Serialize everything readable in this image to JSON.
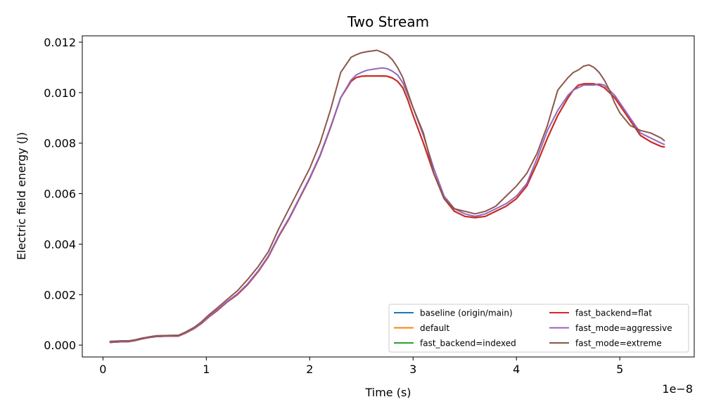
{
  "chart_data": {
    "type": "line",
    "title": "Two Stream",
    "xlabel": "Time (s)",
    "ylabel": "Electric field energy (J)",
    "x_offset_label": "1e−8",
    "x_scale": 1e-08,
    "xlim": [
      -0.2,
      5.72
    ],
    "ylim": [
      -0.00047,
      0.01225
    ],
    "xticks": [
      0,
      1,
      2,
      3,
      4,
      5
    ],
    "xtick_labels": [
      "0",
      "1",
      "2",
      "3",
      "4",
      "5"
    ],
    "yticks": [
      0.0,
      0.002,
      0.004,
      0.006,
      0.008,
      0.01,
      0.012
    ],
    "ytick_labels": [
      "0.000",
      "0.002",
      "0.004",
      "0.006",
      "0.008",
      "0.010",
      "0.012"
    ],
    "grid": false,
    "legend_position": "lower-right",
    "x": [
      0.07,
      0.13,
      0.18,
      0.25,
      0.31,
      0.38,
      0.45,
      0.52,
      0.6,
      0.68,
      0.73,
      0.8,
      0.88,
      0.95,
      1.02,
      1.1,
      1.2,
      1.3,
      1.4,
      1.5,
      1.6,
      1.7,
      1.8,
      1.9,
      2.0,
      2.1,
      2.2,
      2.3,
      2.4,
      2.45,
      2.5,
      2.55,
      2.6,
      2.65,
      2.7,
      2.75,
      2.8,
      2.85,
      2.9,
      2.95,
      3.0,
      3.1,
      3.2,
      3.3,
      3.4,
      3.5,
      3.6,
      3.7,
      3.8,
      3.9,
      4.0,
      4.1,
      4.2,
      4.3,
      4.4,
      4.5,
      4.55,
      4.6,
      4.65,
      4.7,
      4.75,
      4.8,
      4.85,
      4.9,
      4.95,
      5.0,
      5.1,
      5.2,
      5.3,
      5.4,
      5.43
    ],
    "series": [
      {
        "name": "baseline (origin/main)",
        "color": "#1f77b4",
        "values": [
          0.00011,
          0.00012,
          0.00013,
          0.00014,
          0.00018,
          0.00025,
          0.0003,
          0.00034,
          0.00035,
          0.00036,
          0.00036,
          0.00048,
          0.00065,
          0.00085,
          0.0011,
          0.00135,
          0.0017,
          0.002,
          0.0024,
          0.0029,
          0.0035,
          0.0043,
          0.005,
          0.0058,
          0.0066,
          0.0075,
          0.0086,
          0.0098,
          0.01045,
          0.0106,
          0.01065,
          0.01066,
          0.01066,
          0.01066,
          0.01066,
          0.01065,
          0.01058,
          0.01045,
          0.0102,
          0.0097,
          0.0091,
          0.008,
          0.0068,
          0.0058,
          0.0053,
          0.0051,
          0.00505,
          0.0051,
          0.0053,
          0.0055,
          0.0058,
          0.0063,
          0.0072,
          0.0082,
          0.0091,
          0.0098,
          0.0101,
          0.0103,
          0.01035,
          0.01035,
          0.01035,
          0.0103,
          0.0102,
          0.01,
          0.0098,
          0.0095,
          0.0089,
          0.0083,
          0.00805,
          0.00787,
          0.00785
        ]
      },
      {
        "name": "default",
        "color": "#ff7f0e",
        "values": [
          0.00011,
          0.00012,
          0.00013,
          0.00014,
          0.00018,
          0.00025,
          0.0003,
          0.00034,
          0.00035,
          0.00036,
          0.00036,
          0.00048,
          0.00065,
          0.00085,
          0.0011,
          0.00135,
          0.0017,
          0.002,
          0.0024,
          0.0029,
          0.0035,
          0.0043,
          0.005,
          0.0058,
          0.0066,
          0.0075,
          0.0086,
          0.0098,
          0.01045,
          0.0106,
          0.01065,
          0.01066,
          0.01066,
          0.01066,
          0.01066,
          0.01065,
          0.01058,
          0.01045,
          0.0102,
          0.0097,
          0.0091,
          0.008,
          0.0068,
          0.0058,
          0.0053,
          0.0051,
          0.00505,
          0.0051,
          0.0053,
          0.0055,
          0.0058,
          0.0063,
          0.0072,
          0.0082,
          0.0091,
          0.0098,
          0.0101,
          0.0103,
          0.01035,
          0.01035,
          0.01035,
          0.0103,
          0.0102,
          0.01,
          0.0098,
          0.0095,
          0.0089,
          0.0083,
          0.00805,
          0.00787,
          0.00785
        ]
      },
      {
        "name": "fast_backend=indexed",
        "color": "#2ca02c",
        "values": [
          0.00011,
          0.00012,
          0.00013,
          0.00014,
          0.00018,
          0.00025,
          0.0003,
          0.00034,
          0.00035,
          0.00036,
          0.00036,
          0.00048,
          0.00065,
          0.00085,
          0.0011,
          0.00135,
          0.0017,
          0.002,
          0.0024,
          0.0029,
          0.0035,
          0.0043,
          0.005,
          0.0058,
          0.0066,
          0.0075,
          0.0086,
          0.0098,
          0.01045,
          0.0106,
          0.01065,
          0.01066,
          0.01066,
          0.01066,
          0.01066,
          0.01065,
          0.01058,
          0.01045,
          0.0102,
          0.0097,
          0.0091,
          0.008,
          0.0068,
          0.0058,
          0.0053,
          0.0051,
          0.00505,
          0.0051,
          0.0053,
          0.0055,
          0.0058,
          0.0063,
          0.0072,
          0.0082,
          0.0091,
          0.0098,
          0.0101,
          0.0103,
          0.01035,
          0.01035,
          0.01035,
          0.0103,
          0.0102,
          0.01,
          0.0098,
          0.0095,
          0.0089,
          0.0083,
          0.00805,
          0.00787,
          0.00785
        ]
      },
      {
        "name": "fast_backend=flat",
        "color": "#d62728",
        "values": [
          0.00011,
          0.00012,
          0.00013,
          0.00014,
          0.00018,
          0.00025,
          0.0003,
          0.00034,
          0.00035,
          0.00036,
          0.00036,
          0.00048,
          0.00065,
          0.00085,
          0.0011,
          0.00135,
          0.0017,
          0.002,
          0.0024,
          0.0029,
          0.0035,
          0.0043,
          0.005,
          0.0058,
          0.0066,
          0.0075,
          0.0086,
          0.0098,
          0.01045,
          0.0106,
          0.01065,
          0.01066,
          0.01066,
          0.01066,
          0.01066,
          0.01065,
          0.01058,
          0.01045,
          0.0102,
          0.0097,
          0.0091,
          0.008,
          0.0068,
          0.0058,
          0.0053,
          0.0051,
          0.00505,
          0.0051,
          0.0053,
          0.0055,
          0.0058,
          0.0063,
          0.0072,
          0.0082,
          0.0091,
          0.0098,
          0.0101,
          0.0103,
          0.01035,
          0.01035,
          0.01035,
          0.0103,
          0.0102,
          0.01,
          0.0098,
          0.0095,
          0.0089,
          0.0083,
          0.00805,
          0.00787,
          0.00785
        ]
      },
      {
        "name": "fast_mode=aggressive",
        "color": "#9467bd",
        "values": [
          0.00012,
          0.00013,
          0.00014,
          0.00015,
          0.00019,
          0.00026,
          0.00031,
          0.00035,
          0.00036,
          0.00037,
          0.00037,
          0.00049,
          0.00066,
          0.00087,
          0.00112,
          0.00138,
          0.00172,
          0.00203,
          0.00243,
          0.00293,
          0.00353,
          0.00433,
          0.00503,
          0.00583,
          0.00663,
          0.00753,
          0.00863,
          0.0098,
          0.0105,
          0.0107,
          0.0108,
          0.01088,
          0.01092,
          0.01095,
          0.01098,
          0.01095,
          0.01085,
          0.0107,
          0.0104,
          0.0099,
          0.0094,
          0.0083,
          0.007,
          0.0059,
          0.0054,
          0.0052,
          0.0051,
          0.0052,
          0.0054,
          0.0056,
          0.0059,
          0.0064,
          0.0074,
          0.0085,
          0.0093,
          0.0099,
          0.0101,
          0.0102,
          0.0103,
          0.0103,
          0.0103,
          0.01035,
          0.0103,
          0.0101,
          0.0099,
          0.0096,
          0.009,
          0.0084,
          0.0082,
          0.008,
          0.00795
        ]
      },
      {
        "name": "fast_mode=extreme",
        "color": "#8c564b",
        "values": [
          0.00015,
          0.00016,
          0.00017,
          0.00017,
          0.00021,
          0.00028,
          0.00033,
          0.00037,
          0.00038,
          0.00039,
          0.00039,
          0.00052,
          0.0007,
          0.00091,
          0.00118,
          0.00145,
          0.0018,
          0.00215,
          0.0026,
          0.0031,
          0.0037,
          0.0046,
          0.0054,
          0.0062,
          0.007,
          0.008,
          0.0093,
          0.0108,
          0.0114,
          0.0115,
          0.01158,
          0.01162,
          0.01165,
          0.01168,
          0.0116,
          0.0115,
          0.0113,
          0.011,
          0.0106,
          0.01,
          0.0094,
          0.0084,
          0.0068,
          0.0058,
          0.0054,
          0.0053,
          0.0052,
          0.0053,
          0.0055,
          0.0059,
          0.0063,
          0.0068,
          0.0076,
          0.0087,
          0.0101,
          0.0106,
          0.0108,
          0.0109,
          0.01105,
          0.0111,
          0.011,
          0.0108,
          0.0105,
          0.0101,
          0.0096,
          0.0092,
          0.0087,
          0.0085,
          0.0084,
          0.0082,
          0.0081
        ]
      }
    ]
  }
}
